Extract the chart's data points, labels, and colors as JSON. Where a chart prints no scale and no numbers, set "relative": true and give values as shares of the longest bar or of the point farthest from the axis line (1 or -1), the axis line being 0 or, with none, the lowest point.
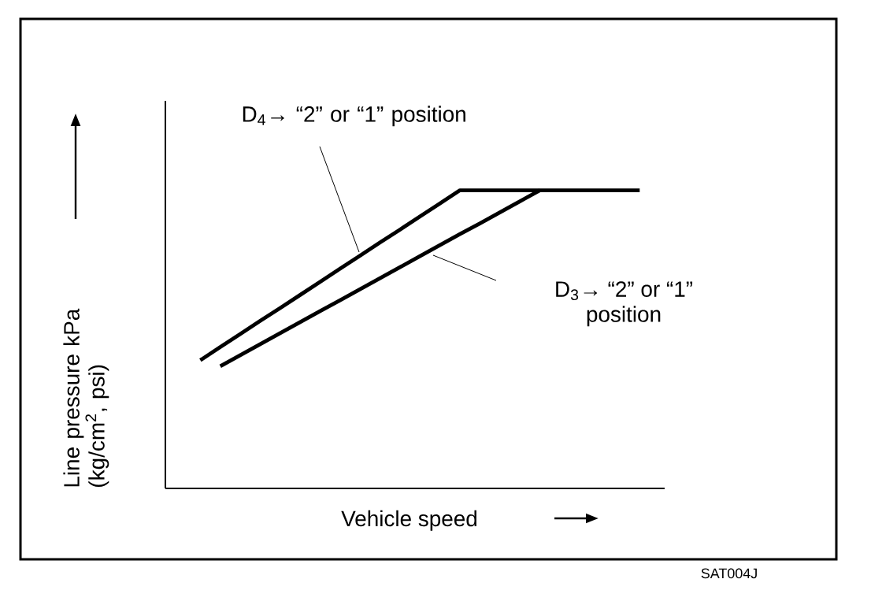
{
  "chart_data": {
    "type": "line",
    "relative": true,
    "xlabel": "Vehicle speed",
    "ylabel": "Line pressure kPa (kg/cm$^{2}$, psi)",
    "tick_labels": false,
    "marker": "none",
    "line_style": "solid",
    "categories": [
      null,
      null,
      null,
      null,
      null,
      null,
      null,
      null,
      null,
      null,
      null,
      null,
      null,
      null,
      null,
      null,
      null,
      null,
      null,
      null,
      null,
      null,
      null
    ],
    "series": [
      {
        "color": "#000000",
        "values": [
          0.43,
          0.474,
          0.518,
          0.562,
          0.605,
          0.649,
          0.693,
          0.737,
          0.781,
          0.825,
          0.868,
          0.912,
          0.956,
          1,
          1,
          1,
          1,
          1,
          1,
          1,
          1,
          1,
          1
        ]
      },
      {
        "color": "#000000",
        "values": [
          null,
          0.41,
          0.447,
          0.484,
          0.521,
          0.558,
          0.595,
          0.631,
          0.668,
          0.705,
          0.742,
          0.779,
          0.816,
          0.853,
          0.889,
          0.926,
          0.963,
          1,
          null,
          null,
          null,
          null,
          null
        ]
      }
    ],
    "annotations": [
      "D$_{4}$→ “2” or “1” position",
      "D$_{3}$→ “2” or “1” position",
      "SAT004J"
    ]
  }
}
